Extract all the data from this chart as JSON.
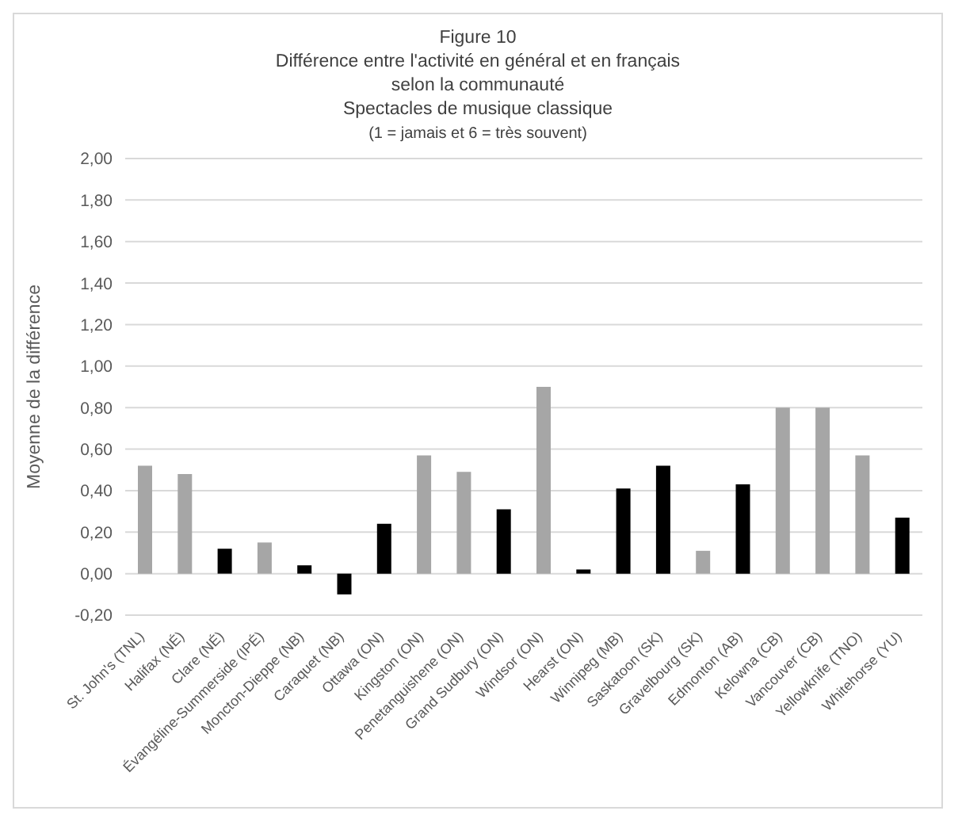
{
  "chart_data": {
    "type": "bar",
    "title": "Figure 10\nDifférence entre l'activité en général et en français\nselon la communauté\nSpectacles de musique classique",
    "subtitle": "(1 = jamais et 6 = très souvent)",
    "ylabel": "Moyenne de la différence",
    "categories": [
      "St. John's (TNL)",
      "Halifax (NÉ)",
      "Clare (NÉ)",
      "Évangéline-Summerside (IPÉ)",
      "Moncton-Dieppe (NB)",
      "Caraquet (NB)",
      "Ottawa (ON)",
      "Kingston (ON)",
      "Penetanguishene (ON)",
      "Grand Sudbury (ON)",
      "Windsor (ON)",
      "Hearst (ON)",
      "Winnipeg (MB)",
      "Saskatoon (SK)",
      "Gravelbourg (SK)",
      "Edmonton (AB)",
      "Kelowna (CB)",
      "Vancouver (CB)",
      "Yellowknife (TNO)",
      "Whitehorse (YU)"
    ],
    "values": [
      0.52,
      0.48,
      0.12,
      0.15,
      0.04,
      -0.1,
      0.24,
      0.57,
      0.49,
      0.31,
      0.9,
      0.02,
      0.41,
      0.52,
      0.11,
      0.43,
      0.8,
      0.8,
      0.57,
      0.27
    ],
    "colors": [
      "#a6a6a6",
      "#a6a6a6",
      "#000000",
      "#a6a6a6",
      "#000000",
      "#000000",
      "#000000",
      "#a6a6a6",
      "#a6a6a6",
      "#000000",
      "#a6a6a6",
      "#000000",
      "#000000",
      "#000000",
      "#a6a6a6",
      "#000000",
      "#a6a6a6",
      "#a6a6a6",
      "#a6a6a6",
      "#000000"
    ],
    "ylim": [
      -0.2,
      2
    ],
    "yticks": [
      {
        "value": -0.2,
        "label": "-0,20"
      },
      {
        "value": 0,
        "label": "0,00"
      },
      {
        "value": 0.2,
        "label": "0,20"
      },
      {
        "value": 0.4,
        "label": "0,40"
      },
      {
        "value": 0.6,
        "label": "0,60"
      },
      {
        "value": 0.8,
        "label": "0,80"
      },
      {
        "value": 1,
        "label": "1,00"
      },
      {
        "value": 1.2,
        "label": "1,20"
      },
      {
        "value": 1.4,
        "label": "1,40"
      },
      {
        "value": 1.6,
        "label": "1,60"
      },
      {
        "value": 1.8,
        "label": "1,80"
      },
      {
        "value": 2,
        "label": "2,00"
      }
    ],
    "grid": "y",
    "legend": false
  }
}
